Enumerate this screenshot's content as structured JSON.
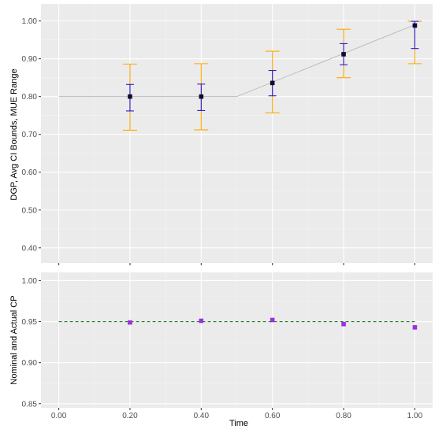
{
  "colors": {
    "panel_bg": "#ebebeb",
    "grid_major": "#ffffff",
    "grid_minor": "#f4f4f4",
    "dgp_line": "#bdbdbd",
    "mue_range": "#ffaa00",
    "avg_ci": "#2b1bd6",
    "estimate_point": "#0d0d2e",
    "nominal_line": "#1f7a1f",
    "actual_cp": "#9b30e0",
    "tick_text": "#4d4d4d",
    "tick_mark": "#333333"
  },
  "chart_data": [
    {
      "type": "line",
      "panel": "top",
      "ylabel": "DGP, Avg CI Bounds, MUE Range",
      "ylim": [
        0.36,
        1.045
      ],
      "xlim": [
        -0.05,
        1.05
      ],
      "grid": true,
      "x_ticks": [
        0.0,
        0.2,
        0.4,
        0.6,
        0.8,
        1.0
      ],
      "y_ticks": [
        0.4,
        0.5,
        0.6,
        0.7,
        0.8,
        0.9,
        1.0
      ],
      "y_tick_labels": [
        "0.40",
        "0.50",
        "0.60",
        "0.70",
        "0.80",
        "0.90",
        "1.00"
      ],
      "dgp_line": {
        "x": [
          0.0,
          0.5,
          1.0
        ],
        "y": [
          0.8,
          0.8,
          0.99
        ]
      },
      "x": [
        0.2,
        0.4,
        0.6,
        0.8,
        1.0
      ],
      "mue_range": {
        "low": [
          0.711,
          0.712,
          0.757,
          0.85,
          0.887
        ],
        "high": [
          0.886,
          0.887,
          0.92,
          0.978,
          0.999
        ]
      },
      "avg_ci": {
        "low": [
          0.762,
          0.763,
          0.802,
          0.884,
          0.927
        ],
        "high": [
          0.832,
          0.833,
          0.869,
          0.94,
          0.999
        ]
      },
      "estimate": [
        0.8,
        0.8,
        0.836,
        0.912,
        0.988
      ]
    },
    {
      "type": "scatter",
      "panel": "bottom",
      "xlabel": "Time",
      "ylabel": "Nominal and Actual CP",
      "ylim": [
        0.845,
        1.01
      ],
      "xlim": [
        -0.05,
        1.05
      ],
      "grid": true,
      "x_ticks": [
        0.0,
        0.2,
        0.4,
        0.6,
        0.8,
        1.0
      ],
      "x_tick_labels": [
        "0.00",
        "0.20",
        "0.40",
        "0.60",
        "0.80",
        "1.00"
      ],
      "y_ticks": [
        0.85,
        0.9,
        0.95,
        1.0
      ],
      "y_tick_labels": [
        "0.85",
        "0.90",
        "0.95",
        "1.00"
      ],
      "nominal": {
        "x": [
          0.0,
          1.0
        ],
        "y": [
          0.95,
          0.95
        ]
      },
      "x": [
        0.2,
        0.4,
        0.6,
        0.8,
        1.0
      ],
      "actual": [
        0.949,
        0.951,
        0.952,
        0.947,
        0.943
      ]
    }
  ]
}
